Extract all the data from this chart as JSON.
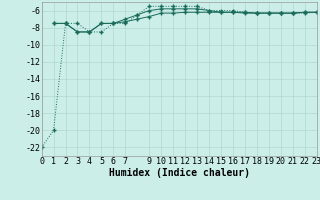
{
  "xlabel": "Humidex (Indice chaleur)",
  "background_color": "#cbeee9",
  "grid_color": "#b0d8d0",
  "line_color": "#1a6b5a",
  "xlim": [
    0,
    23
  ],
  "ylim": [
    -23,
    -5
  ],
  "xticks": [
    0,
    1,
    2,
    3,
    4,
    5,
    6,
    7,
    9,
    10,
    11,
    12,
    13,
    14,
    15,
    16,
    17,
    18,
    19,
    20,
    21,
    22,
    23
  ],
  "yticks": [
    -22,
    -20,
    -18,
    -16,
    -14,
    -12,
    -10,
    -8,
    -6
  ],
  "line1_x": [
    0,
    1,
    2,
    3,
    4,
    5,
    6,
    7,
    8,
    9,
    10,
    11,
    12,
    13,
    14,
    15,
    16,
    17,
    18,
    19,
    20,
    21,
    22,
    23
  ],
  "line1_y": [
    -22,
    -20,
    -7.5,
    -7.5,
    -8.5,
    -8.5,
    -7.5,
    -7.5,
    -6.5,
    -5.5,
    -5.5,
    -5.5,
    -5.5,
    -5.5,
    -6.0,
    -6.0,
    -6.0,
    -6.2,
    -6.3,
    -6.3,
    -6.3,
    -6.3,
    -6.3,
    -6.2
  ],
  "line2_x": [
    1,
    2,
    3,
    4,
    5,
    6,
    7,
    8,
    9,
    10,
    11,
    12,
    13,
    14,
    15,
    16,
    17,
    18,
    19,
    20,
    21,
    22,
    23
  ],
  "line2_y": [
    -7.5,
    -7.5,
    -8.5,
    -8.5,
    -7.5,
    -7.5,
    -7.0,
    -6.5,
    -6.0,
    -5.8,
    -5.8,
    -5.8,
    -5.8,
    -6.0,
    -6.2,
    -6.2,
    -6.3,
    -6.3,
    -6.3,
    -6.3,
    -6.3,
    -6.2,
    -6.2
  ],
  "line3_x": [
    1,
    2,
    3,
    4,
    5,
    6,
    7,
    8,
    9,
    10,
    11,
    12,
    13,
    14,
    15,
    16,
    17,
    18,
    19,
    20,
    21,
    22,
    23
  ],
  "line3_y": [
    -7.5,
    -7.5,
    -8.5,
    -8.5,
    -7.5,
    -7.5,
    -7.3,
    -7.0,
    -6.7,
    -6.3,
    -6.3,
    -6.2,
    -6.2,
    -6.2,
    -6.2,
    -6.2,
    -6.2,
    -6.3,
    -6.3,
    -6.3,
    -6.3,
    -6.2,
    -6.2
  ],
  "tick_fontsize": 6,
  "xlabel_fontsize": 7
}
